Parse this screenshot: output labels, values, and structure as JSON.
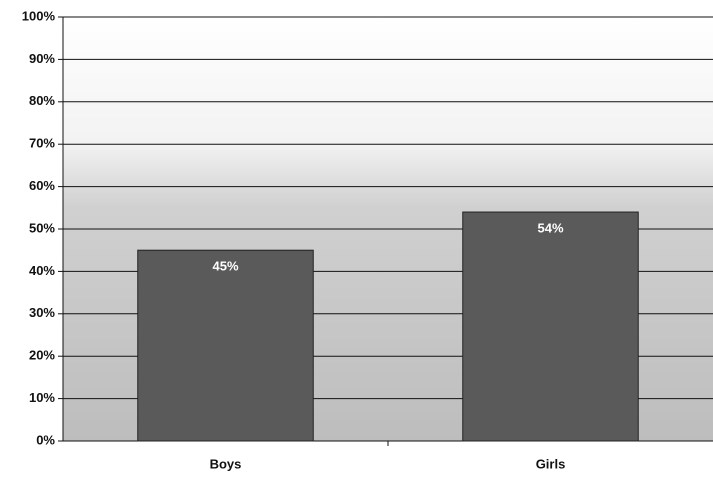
{
  "chart_data": {
    "type": "bar",
    "categories": [
      "Boys",
      "Girls"
    ],
    "values": [
      45,
      54
    ],
    "value_labels": [
      "45%",
      "54%"
    ],
    "color": "#5a5a5a",
    "ylim": [
      0,
      100
    ],
    "yticks": [
      {
        "value": 0,
        "label": "0%"
      },
      {
        "value": 10,
        "label": "10%"
      },
      {
        "value": 20,
        "label": "20%"
      },
      {
        "value": 30,
        "label": "30%"
      },
      {
        "value": 40,
        "label": "40%"
      },
      {
        "value": 50,
        "label": "50%"
      },
      {
        "value": 60,
        "label": "60%"
      },
      {
        "value": 70,
        "label": "70%"
      },
      {
        "value": 80,
        "label": "80%"
      },
      {
        "value": 90,
        "label": "90%"
      },
      {
        "value": 100,
        "label": "100%"
      }
    ],
    "grid": true
  }
}
